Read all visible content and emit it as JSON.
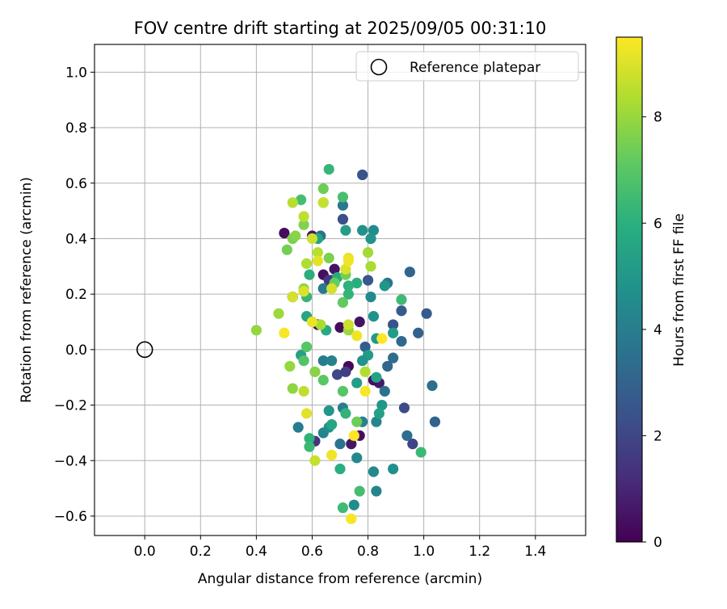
{
  "chart_data": {
    "type": "scatter",
    "title": "FOV centre drift starting at 2025/09/05 00:31:10",
    "xlabel": "Angular distance from reference (arcmin)",
    "ylabel": "Rotation from reference (arcmin)",
    "xlim": [
      -0.18,
      1.58
    ],
    "ylim": [
      -0.67,
      1.1
    ],
    "xticks": [
      0.0,
      0.2,
      0.4,
      0.6,
      0.8,
      1.0,
      1.2,
      1.4
    ],
    "xtick_labels": [
      "0.0",
      "0.2",
      "0.4",
      "0.6",
      "0.8",
      "1.0",
      "1.2",
      "1.4"
    ],
    "yticks": [
      -0.6,
      -0.4,
      -0.2,
      0.0,
      0.2,
      0.4,
      0.6,
      0.8,
      1.0
    ],
    "ytick_labels": [
      "−0.6",
      "−0.4",
      "−0.2",
      "0.0",
      "0.2",
      "0.4",
      "0.6",
      "0.8",
      "1.0"
    ],
    "grid": true,
    "legend": {
      "position": "top-right",
      "entries": [
        "Reference platepar"
      ]
    },
    "reference_point": {
      "x": 0.0,
      "y": 0.0,
      "label": "Reference platepar"
    },
    "colorbar": {
      "label": "Hours from first FF file",
      "range": [
        0,
        9.5
      ],
      "ticks": [
        0,
        2,
        4,
        6,
        8
      ],
      "tick_labels": [
        "0",
        "2",
        "4",
        "6",
        "8"
      ],
      "colormap": "viridis"
    },
    "points": [
      {
        "x": 0.5,
        "y": 0.42,
        "h": 0.3
      },
      {
        "x": 0.53,
        "y": 0.19,
        "h": 0.5
      },
      {
        "x": 0.6,
        "y": 0.41,
        "h": 0.6
      },
      {
        "x": 0.62,
        "y": 0.09,
        "h": 0.2
      },
      {
        "x": 0.64,
        "y": 0.27,
        "h": 0.4
      },
      {
        "x": 0.67,
        "y": 0.25,
        "h": 0.8
      },
      {
        "x": 0.68,
        "y": 0.29,
        "h": 0.5
      },
      {
        "x": 0.7,
        "y": 0.08,
        "h": 0.3
      },
      {
        "x": 0.73,
        "y": -0.06,
        "h": 0.2
      },
      {
        "x": 0.74,
        "y": -0.34,
        "h": 0.6
      },
      {
        "x": 0.77,
        "y": -0.31,
        "h": 0.4
      },
      {
        "x": 0.77,
        "y": 0.1,
        "h": 0.5
      },
      {
        "x": 0.84,
        "y": -0.12,
        "h": 0.7
      },
      {
        "x": 0.82,
        "y": -0.11,
        "h": 0.3
      },
      {
        "x": 0.61,
        "y": -0.33,
        "h": 1.4
      },
      {
        "x": 0.78,
        "y": 0.63,
        "h": 2.5
      },
      {
        "x": 0.71,
        "y": 0.47,
        "h": 2.3
      },
      {
        "x": 0.69,
        "y": -0.09,
        "h": 2.1
      },
      {
        "x": 0.72,
        "y": -0.08,
        "h": 1.8
      },
      {
        "x": 0.8,
        "y": 0.25,
        "h": 2.6
      },
      {
        "x": 0.92,
        "y": 0.14,
        "h": 2.8
      },
      {
        "x": 0.89,
        "y": 0.09,
        "h": 2.4
      },
      {
        "x": 0.93,
        "y": -0.21,
        "h": 2.2
      },
      {
        "x": 0.96,
        "y": -0.34,
        "h": 2.0
      },
      {
        "x": 1.01,
        "y": 0.13,
        "h": 2.7
      },
      {
        "x": 0.79,
        "y": 0.01,
        "h": 2.9
      },
      {
        "x": 0.66,
        "y": 0.25,
        "h": 1.6
      },
      {
        "x": 1.04,
        "y": -0.26,
        "h": 3.0
      },
      {
        "x": 0.95,
        "y": 0.28,
        "h": 3.1
      },
      {
        "x": 0.98,
        "y": 0.06,
        "h": 3.0
      },
      {
        "x": 0.92,
        "y": 0.03,
        "h": 3.3
      },
      {
        "x": 0.94,
        "y": -0.31,
        "h": 3.4
      },
      {
        "x": 1.03,
        "y": -0.13,
        "h": 3.5
      },
      {
        "x": 0.89,
        "y": -0.03,
        "h": 3.4
      },
      {
        "x": 0.86,
        "y": -0.15,
        "h": 3.6
      },
      {
        "x": 0.87,
        "y": -0.06,
        "h": 3.2
      },
      {
        "x": 0.87,
        "y": 0.24,
        "h": 3.7
      },
      {
        "x": 0.71,
        "y": 0.52,
        "h": 3.8
      },
      {
        "x": 0.63,
        "y": 0.41,
        "h": 3.5
      },
      {
        "x": 0.64,
        "y": 0.22,
        "h": 3.9
      },
      {
        "x": 0.64,
        "y": -0.04,
        "h": 4.0
      },
      {
        "x": 0.67,
        "y": -0.04,
        "h": 4.2
      },
      {
        "x": 0.7,
        "y": -0.34,
        "h": 3.6
      },
      {
        "x": 0.71,
        "y": -0.21,
        "h": 4.1
      },
      {
        "x": 0.64,
        "y": -0.3,
        "h": 4.3
      },
      {
        "x": 0.55,
        "y": -0.28,
        "h": 4.0
      },
      {
        "x": 0.76,
        "y": -0.39,
        "h": 4.4
      },
      {
        "x": 0.78,
        "y": -0.26,
        "h": 4.2
      },
      {
        "x": 0.82,
        "y": -0.44,
        "h": 4.5
      },
      {
        "x": 0.83,
        "y": -0.51,
        "h": 4.3
      },
      {
        "x": 0.75,
        "y": -0.56,
        "h": 4.6
      },
      {
        "x": 0.83,
        "y": -0.26,
        "h": 4.4
      },
      {
        "x": 0.89,
        "y": -0.43,
        "h": 4.7
      },
      {
        "x": 0.78,
        "y": 0.43,
        "h": 4.8
      },
      {
        "x": 0.82,
        "y": 0.43,
        "h": 4.6
      },
      {
        "x": 0.81,
        "y": 0.4,
        "h": 4.9
      },
      {
        "x": 0.81,
        "y": 0.19,
        "h": 4.5
      },
      {
        "x": 0.82,
        "y": 0.12,
        "h": 4.8
      },
      {
        "x": 0.86,
        "y": 0.23,
        "h": 5.0
      },
      {
        "x": 0.83,
        "y": 0.04,
        "h": 5.1
      },
      {
        "x": 0.8,
        "y": -0.02,
        "h": 5.2
      },
      {
        "x": 0.78,
        "y": -0.04,
        "h": 4.9
      },
      {
        "x": 0.76,
        "y": -0.12,
        "h": 5.3
      },
      {
        "x": 0.85,
        "y": -0.2,
        "h": 5.0
      },
      {
        "x": 0.84,
        "y": -0.23,
        "h": 5.4
      },
      {
        "x": 0.83,
        "y": -0.1,
        "h": 5.5
      },
      {
        "x": 0.89,
        "y": 0.06,
        "h": 5.2
      },
      {
        "x": 0.72,
        "y": 0.43,
        "h": 5.3
      },
      {
        "x": 0.66,
        "y": -0.22,
        "h": 5.0
      },
      {
        "x": 0.66,
        "y": -0.28,
        "h": 4.7
      },
      {
        "x": 0.67,
        "y": -0.27,
        "h": 5.6
      },
      {
        "x": 0.56,
        "y": -0.02,
        "h": 5.4
      },
      {
        "x": 0.58,
        "y": 0.12,
        "h": 5.6
      },
      {
        "x": 0.65,
        "y": 0.07,
        "h": 5.8
      },
      {
        "x": 0.62,
        "y": 0.4,
        "h": 5.5
      },
      {
        "x": 0.69,
        "y": 0.26,
        "h": 5.9
      },
      {
        "x": 0.76,
        "y": 0.24,
        "h": 6.0
      },
      {
        "x": 0.73,
        "y": 0.23,
        "h": 6.1
      },
      {
        "x": 0.73,
        "y": 0.2,
        "h": 6.2
      },
      {
        "x": 0.59,
        "y": 0.27,
        "h": 6.0
      },
      {
        "x": 0.58,
        "y": 0.19,
        "h": 6.3
      },
      {
        "x": 0.59,
        "y": -0.32,
        "h": 6.1
      },
      {
        "x": 0.59,
        "y": -0.35,
        "h": 6.4
      },
      {
        "x": 0.72,
        "y": -0.23,
        "h": 6.2
      },
      {
        "x": 0.71,
        "y": -0.57,
        "h": 6.5
      },
      {
        "x": 0.7,
        "y": -0.43,
        "h": 6.0
      },
      {
        "x": 0.77,
        "y": -0.51,
        "h": 6.6
      },
      {
        "x": 0.99,
        "y": -0.37,
        "h": 6.4
      },
      {
        "x": 0.92,
        "y": 0.18,
        "h": 6.5
      },
      {
        "x": 0.66,
        "y": 0.65,
        "h": 6.3
      },
      {
        "x": 0.71,
        "y": 0.55,
        "h": 6.7
      },
      {
        "x": 0.56,
        "y": 0.54,
        "h": 6.6
      },
      {
        "x": 0.64,
        "y": 0.53,
        "h": 6.8
      },
      {
        "x": 0.57,
        "y": -0.04,
        "h": 6.9
      },
      {
        "x": 0.58,
        "y": 0.01,
        "h": 7.0
      },
      {
        "x": 0.64,
        "y": -0.11,
        "h": 7.1
      },
      {
        "x": 0.71,
        "y": 0.17,
        "h": 7.2
      },
      {
        "x": 0.68,
        "y": 0.24,
        "h": 7.3
      },
      {
        "x": 0.71,
        "y": -0.15,
        "h": 7.0
      },
      {
        "x": 0.76,
        "y": -0.26,
        "h": 7.4
      },
      {
        "x": 0.72,
        "y": 0.27,
        "h": 7.5
      },
      {
        "x": 0.66,
        "y": 0.33,
        "h": 7.6
      },
      {
        "x": 0.64,
        "y": 0.58,
        "h": 7.4
      },
      {
        "x": 0.57,
        "y": 0.45,
        "h": 7.7
      },
      {
        "x": 0.53,
        "y": 0.4,
        "h": 7.6
      },
      {
        "x": 0.54,
        "y": 0.41,
        "h": 7.8
      },
      {
        "x": 0.51,
        "y": 0.36,
        "h": 7.5
      },
      {
        "x": 0.57,
        "y": 0.22,
        "h": 7.9
      },
      {
        "x": 0.61,
        "y": -0.08,
        "h": 7.8
      },
      {
        "x": 0.52,
        "y": -0.06,
        "h": 8.0
      },
      {
        "x": 0.53,
        "y": -0.14,
        "h": 7.9
      },
      {
        "x": 0.4,
        "y": 0.07,
        "h": 8.0
      },
      {
        "x": 0.48,
        "y": 0.13,
        "h": 8.1
      },
      {
        "x": 0.6,
        "y": 0.1,
        "h": 8.2
      },
      {
        "x": 0.63,
        "y": 0.09,
        "h": 8.3
      },
      {
        "x": 0.73,
        "y": 0.07,
        "h": 8.1
      },
      {
        "x": 0.79,
        "y": -0.08,
        "h": 8.4
      },
      {
        "x": 0.8,
        "y": 0.35,
        "h": 8.2
      },
      {
        "x": 0.81,
        "y": 0.3,
        "h": 8.3
      },
      {
        "x": 0.62,
        "y": 0.35,
        "h": 8.5
      },
      {
        "x": 0.58,
        "y": 0.31,
        "h": 8.4
      },
      {
        "x": 0.57,
        "y": 0.48,
        "h": 8.6
      },
      {
        "x": 0.53,
        "y": 0.53,
        "h": 8.5
      },
      {
        "x": 0.61,
        "y": -0.4,
        "h": 8.7
      },
      {
        "x": 0.57,
        "y": -0.15,
        "h": 8.6
      },
      {
        "x": 0.73,
        "y": 0.09,
        "h": 8.8
      },
      {
        "x": 0.64,
        "y": 0.53,
        "h": 8.7
      },
      {
        "x": 0.67,
        "y": 0.22,
        "h": 8.9
      },
      {
        "x": 0.6,
        "y": 0.4,
        "h": 8.8
      },
      {
        "x": 0.53,
        "y": 0.19,
        "h": 8.9
      },
      {
        "x": 0.57,
        "y": 0.21,
        "h": 9.0
      },
      {
        "x": 0.62,
        "y": 0.32,
        "h": 9.1
      },
      {
        "x": 0.73,
        "y": 0.33,
        "h": 9.2
      },
      {
        "x": 0.72,
        "y": 0.29,
        "h": 9.0
      },
      {
        "x": 0.73,
        "y": 0.32,
        "h": 9.3
      },
      {
        "x": 0.6,
        "y": 0.1,
        "h": 9.2
      },
      {
        "x": 0.5,
        "y": 0.06,
        "h": 9.4
      },
      {
        "x": 0.76,
        "y": 0.05,
        "h": 9.3
      },
      {
        "x": 0.85,
        "y": 0.04,
        "h": 9.5
      },
      {
        "x": 0.79,
        "y": -0.15,
        "h": 9.4
      },
      {
        "x": 0.58,
        "y": -0.23,
        "h": 9.1
      },
      {
        "x": 0.67,
        "y": -0.38,
        "h": 9.3
      },
      {
        "x": 0.75,
        "y": -0.31,
        "h": 9.5
      },
      {
        "x": 0.74,
        "y": -0.61,
        "h": 9.4
      }
    ]
  }
}
